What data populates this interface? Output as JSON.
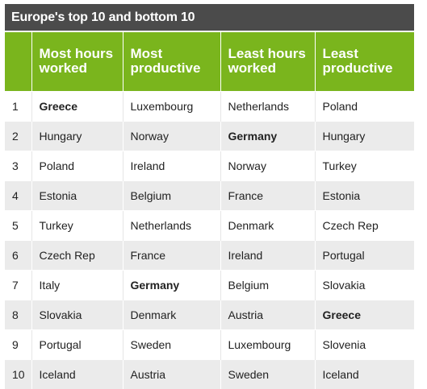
{
  "title": "Europe's top 10 and bottom 10",
  "headers": [
    "",
    "Most hours worked",
    "Most productive",
    "Least hours worked",
    "Least productive"
  ],
  "rows": [
    [
      "1",
      "Greece",
      "Luxembourg",
      "Netherlands",
      "Poland"
    ],
    [
      "2",
      "Hungary",
      "Norway",
      "Germany",
      "Hungary"
    ],
    [
      "3",
      "Poland",
      "Ireland",
      "Norway",
      "Turkey"
    ],
    [
      "4",
      "Estonia",
      "Belgium",
      "France",
      "Estonia"
    ],
    [
      "5",
      "Turkey",
      "Netherlands",
      "Denmark",
      "Czech Rep"
    ],
    [
      "6",
      "Czech Rep",
      "France",
      "Ireland",
      "Portugal"
    ],
    [
      "7",
      "Italy",
      "Germany",
      "Belgium",
      "Slovakia"
    ],
    [
      "8",
      "Slovakia",
      "Denmark",
      "Austria",
      "Greece"
    ],
    [
      "9",
      "Portugal",
      "Sweden",
      "Luxembourg",
      "Slovenia"
    ],
    [
      "10",
      "Iceland",
      "Austria",
      "Sweden",
      "Iceland"
    ]
  ],
  "colors": {
    "title_bg": "#4b4b4b",
    "header_bg": "#7ab51d",
    "stripe_bg": "#ebebeb"
  }
}
